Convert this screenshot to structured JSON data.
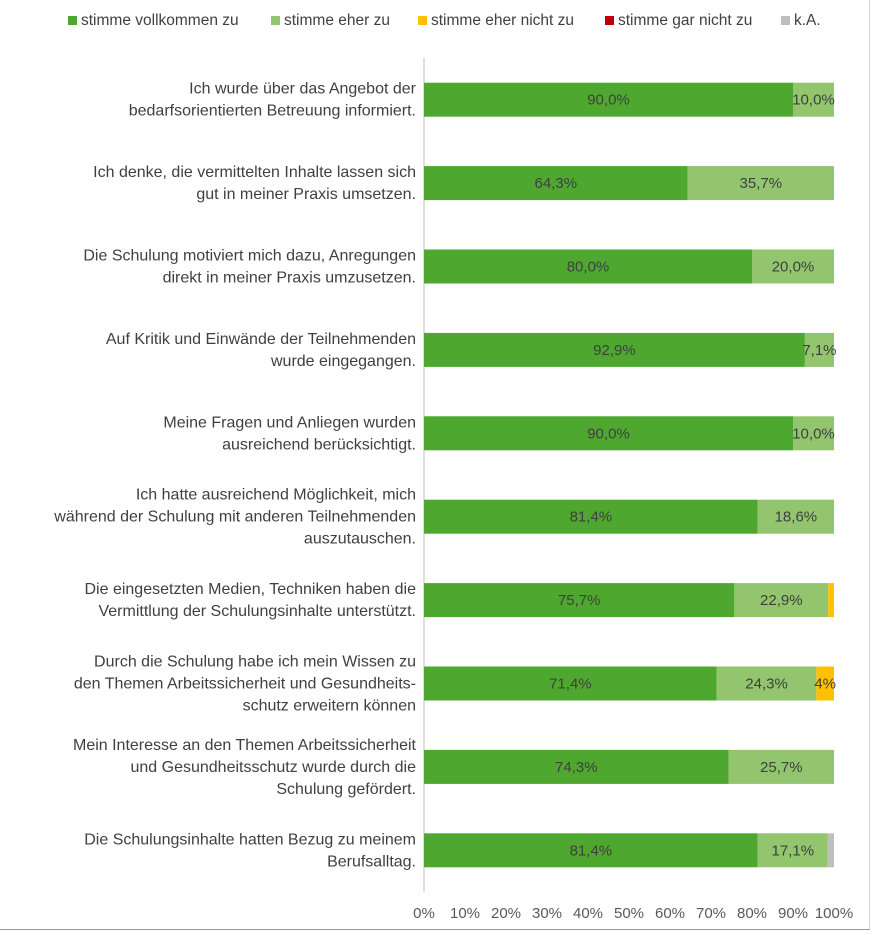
{
  "chart_data": {
    "type": "bar",
    "orientation": "horizontal",
    "stacked": true,
    "legend_position": "top",
    "xlim": [
      0,
      100
    ],
    "x_ticks": [
      "0%",
      "10%",
      "20%",
      "30%",
      "40%",
      "50%",
      "60%",
      "70%",
      "80%",
      "90%",
      "100%"
    ],
    "grid": false,
    "series": [
      {
        "name": "stimme vollkommen zu",
        "color": "#4ea72e"
      },
      {
        "name": "stimme eher zu",
        "color": "#92c56e"
      },
      {
        "name": "stimme eher nicht zu",
        "color": "#ffc000"
      },
      {
        "name": "stimme gar nicht zu",
        "color": "#c00000"
      },
      {
        "name": "k.A.",
        "color": "#bfbfbf"
      }
    ],
    "categories": [
      [
        "Ich wurde über das Angebot der",
        "bedarfsorientierten Betreuung informiert."
      ],
      [
        "Ich denke, die vermittelten Inhalte lassen sich",
        "gut in meiner Praxis umsetzen."
      ],
      [
        "Die Schulung motiviert mich dazu, Anregungen",
        "direkt in meiner Praxis umzusetzen."
      ],
      [
        "Auf Kritik und Einwände der Teilnehmenden",
        "wurde eingegangen."
      ],
      [
        "Meine Fragen und Anliegen wurden",
        "ausreichend berücksichtigt."
      ],
      [
        "Ich hatte ausreichend Möglichkeit, mich",
        "während der Schulung mit anderen Teilnehmenden",
        "auszutauschen."
      ],
      [
        "Die eingesetzten Medien, Techniken haben die",
        "Vermittlung der Schulungsinhalte unterstützt."
      ],
      [
        "Durch die Schulung habe ich mein Wissen zu",
        "den Themen Arbeitssicherheit und Gesundheits-",
        "schutz erweitern können"
      ],
      [
        "Mein Interesse an den Themen Arbeitssicherheit",
        "und Gesundheitsschutz wurde durch die",
        "Schulung gefördert."
      ],
      [
        "Die Schulungsinhalte hatten Bezug zu meinem",
        "Berufsalltag."
      ]
    ],
    "values": [
      [
        90.0,
        10.0,
        0,
        0,
        0
      ],
      [
        64.3,
        35.7,
        0,
        0,
        0
      ],
      [
        80.0,
        20.0,
        0,
        0,
        0
      ],
      [
        92.9,
        7.1,
        0,
        0,
        0
      ],
      [
        90.0,
        10.0,
        0,
        0,
        0
      ],
      [
        81.4,
        18.6,
        0,
        0,
        0
      ],
      [
        75.7,
        22.9,
        1.4,
        0,
        0
      ],
      [
        71.4,
        24.3,
        4.3,
        0,
        0
      ],
      [
        74.3,
        25.7,
        0,
        0,
        0
      ],
      [
        81.4,
        17.1,
        0,
        0,
        1.5
      ]
    ],
    "data_labels": [
      [
        "90,0%",
        "10,0%",
        "",
        "",
        ""
      ],
      [
        "64,3%",
        "35,7%",
        "",
        "",
        ""
      ],
      [
        "80,0%",
        "20,0%",
        "",
        "",
        ""
      ],
      [
        "92,9%",
        "7,1%",
        "",
        "",
        ""
      ],
      [
        "90,0%",
        "10,0%",
        "",
        "",
        ""
      ],
      [
        "81,4%",
        "18,6%",
        "",
        "",
        ""
      ],
      [
        "75,7%",
        "22,9%",
        "",
        "",
        ""
      ],
      [
        "71,4%",
        "24,3%",
        "4%",
        "",
        ""
      ],
      [
        "74,3%",
        "25,7%",
        "",
        "",
        ""
      ],
      [
        "81,4%",
        "17,1%",
        "",
        "",
        ""
      ]
    ]
  }
}
